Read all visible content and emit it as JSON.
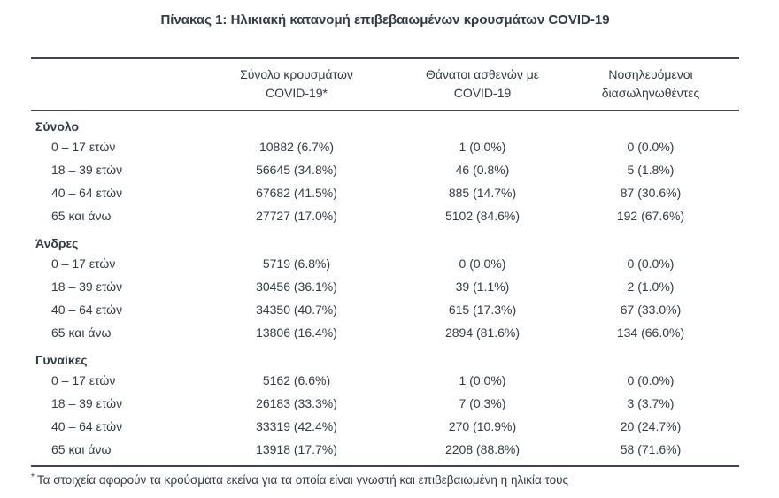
{
  "title": "Πίνακας 1: Ηλικιακή κατανομή επιβεβαιωμένων κρουσμάτων COVID-19",
  "table": {
    "headers": {
      "cases": {
        "line1": "Σύνολο κρουσμάτων",
        "line2": "COVID-19*"
      },
      "deaths": {
        "line1": "Θάνατοι ασθενών με",
        "line2": "COVID-19"
      },
      "intubated": {
        "line1": "Νοσηλευόμενοι",
        "line2": "διασωληνωθέντες"
      }
    },
    "sections": [
      {
        "label": "Σύνολο",
        "rows": [
          {
            "age": "0 – 17 ετών",
            "cases": "10882 (6.7%)",
            "deaths": "1 (0.0%)",
            "intubated": "0 (0.0%)"
          },
          {
            "age": "18 – 39 ετών",
            "cases": "56645 (34.8%)",
            "deaths": "46 (0.8%)",
            "intubated": "5 (1.8%)"
          },
          {
            "age": "40 – 64 ετών",
            "cases": "67682 (41.5%)",
            "deaths": "885 (14.7%)",
            "intubated": "87 (30.6%)"
          },
          {
            "age": "65 και άνω",
            "cases": "27727 (17.0%)",
            "deaths": "5102 (84.6%)",
            "intubated": "192 (67.6%)"
          }
        ]
      },
      {
        "label": "Άνδρες",
        "rows": [
          {
            "age": "0 – 17 ετών",
            "cases": "5719 (6.8%)",
            "deaths": "0 (0.0%)",
            "intubated": "0 (0.0%)"
          },
          {
            "age": "18 – 39 ετών",
            "cases": "30456 (36.1%)",
            "deaths": "39 (1.1%)",
            "intubated": "2 (1.0%)"
          },
          {
            "age": "40 – 64 ετών",
            "cases": "34350 (40.7%)",
            "deaths": "615 (17.3%)",
            "intubated": "67 (33.0%)"
          },
          {
            "age": "65 και άνω",
            "cases": "13806 (16.4%)",
            "deaths": "2894 (81.6%)",
            "intubated": "134 (66.0%)"
          }
        ]
      },
      {
        "label": "Γυναίκες",
        "rows": [
          {
            "age": "0 – 17 ετών",
            "cases": "5162 (6.6%)",
            "deaths": "1 (0.0%)",
            "intubated": "0 (0.0%)"
          },
          {
            "age": "18 – 39 ετών",
            "cases": "26183 (33.3%)",
            "deaths": "7 (0.3%)",
            "intubated": "3 (3.7%)"
          },
          {
            "age": "40 – 64 ετών",
            "cases": "33319 (42.4%)",
            "deaths": "270 (10.9%)",
            "intubated": "20 (24.7%)"
          },
          {
            "age": "65 και άνω",
            "cases": "13918 (17.7%)",
            "deaths": "2208 (88.8%)",
            "intubated": "58 (71.6%)"
          }
        ]
      }
    ]
  },
  "footnote": {
    "marker": "*",
    "text": "Τα στοιχεία αφορούν τα κρούσματα εκείνα για τα οποία είναι γνωστή και επιβεβαιωμένη η ηλικία τους"
  },
  "colors": {
    "text": "#323a45",
    "rule": "#40454d",
    "background": "#ffffff"
  }
}
